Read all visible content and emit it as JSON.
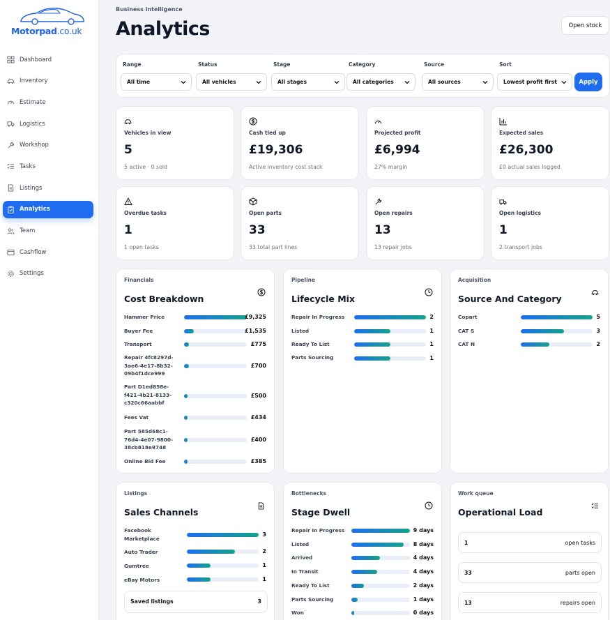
{
  "brand": {
    "name": "Motorpad",
    "suffix": ".co.uk"
  },
  "nav": [
    {
      "label": "Dashboard",
      "icon": "dashboard-icon"
    },
    {
      "label": "Inventory",
      "icon": "car-icon"
    },
    {
      "label": "Estimate",
      "icon": "gauge-icon"
    },
    {
      "label": "Logistics",
      "icon": "truck-icon"
    },
    {
      "label": "Workshop",
      "icon": "wrench-icon"
    },
    {
      "label": "Tasks",
      "icon": "checklist-icon"
    },
    {
      "label": "Listings",
      "icon": "document-icon"
    },
    {
      "label": "Analytics",
      "icon": "clipboard-icon",
      "active": true
    },
    {
      "label": "Team",
      "icon": "users-icon"
    },
    {
      "label": "Cashflow",
      "icon": "wallet-icon"
    },
    {
      "label": "Settings",
      "icon": "gear-icon"
    }
  ],
  "header": {
    "eyebrow": "Business intelligence",
    "title": "Analytics",
    "open_stock": "Open stock"
  },
  "filters": [
    {
      "label": "Range",
      "value": "All time"
    },
    {
      "label": "Status",
      "value": "All vehicles"
    },
    {
      "label": "Stage",
      "value": "All stages"
    },
    {
      "label": "Category",
      "value": "All categories"
    },
    {
      "label": "Source",
      "value": "All sources"
    },
    {
      "label": "Sort",
      "value": "Lowest profit first"
    }
  ],
  "apply_label": "Apply",
  "kpis": [
    {
      "label": "Vehicles in view",
      "value": "5",
      "sub": "5 active · 0 sold",
      "icon": "car-icon"
    },
    {
      "label": "Cash tied up",
      "value": "£19,306",
      "sub": "Active inventory cost stack",
      "icon": "dollar-icon"
    },
    {
      "label": "Projected profit",
      "value": "£6,994",
      "sub": "27% margin",
      "icon": "gauge-icon"
    },
    {
      "label": "Expected sales",
      "value": "£26,300",
      "sub": "£0 actual sales logged",
      "icon": "bar-chart-icon"
    },
    {
      "label": "Overdue tasks",
      "value": "1",
      "sub": "1 open tasks",
      "icon": "warning-icon"
    },
    {
      "label": "Open parts",
      "value": "33",
      "sub": "33 total part lines",
      "icon": "package-icon"
    },
    {
      "label": "Open repairs",
      "value": "13",
      "sub": "13 repair jobs",
      "icon": "wrench-icon"
    },
    {
      "label": "Open logistics",
      "value": "1",
      "sub": "2 transport jobs",
      "icon": "truck-icon"
    }
  ],
  "cost_breakdown": {
    "eyebrow": "Financials",
    "title": "Cost Breakdown",
    "icon": "dollar-icon",
    "rows": [
      {
        "label": "Hammer Price",
        "value": "£9,325",
        "fraction": 1.0
      },
      {
        "label": "Buyer Fee",
        "value": "£1,535",
        "fraction": 0.16
      },
      {
        "label": "Transport",
        "value": "£775",
        "fraction": 0.08
      },
      {
        "label": "Repair 4fc8297d-3ae6-4e17-8b32-09b4f1dce999",
        "value": "£700",
        "fraction": 0.075
      },
      {
        "label": "Part D1ed858e-f421-4b21-8133-c320c66aabbf",
        "value": "£500",
        "fraction": 0.054
      },
      {
        "label": "Fees Vat",
        "value": "£434",
        "fraction": 0.047
      },
      {
        "label": "Part 585d68c1-76d4-4e07-9800-38cb818e9748",
        "value": "£400",
        "fraction": 0.043
      },
      {
        "label": "Online Bid Fee",
        "value": "£385",
        "fraction": 0.041
      }
    ]
  },
  "lifecycle": {
    "eyebrow": "Pipeline",
    "title": "Lifecycle Mix",
    "icon": "clock-icon",
    "rows": [
      {
        "label": "Repair In Progress",
        "value": "2",
        "fraction": 1.0
      },
      {
        "label": "Listed",
        "value": "1",
        "fraction": 0.5
      },
      {
        "label": "Ready To List",
        "value": "1",
        "fraction": 0.5
      },
      {
        "label": "Parts Sourcing",
        "value": "1",
        "fraction": 0.5
      }
    ]
  },
  "source": {
    "eyebrow": "Acquisition",
    "title": "Source And Category",
    "icon": "car-icon",
    "rows": [
      {
        "label": "Copart",
        "value": "5",
        "fraction": 1.0
      },
      {
        "label": "CAT S",
        "value": "3",
        "fraction": 0.6
      },
      {
        "label": "CAT N",
        "value": "2",
        "fraction": 0.4
      }
    ]
  },
  "channels": {
    "eyebrow": "Listings",
    "title": "Sales Channels",
    "icon": "document-icon",
    "rows": [
      {
        "label": "Facebook Marketplace",
        "value": "3",
        "fraction": 1.0
      },
      {
        "label": "Auto Trader",
        "value": "2",
        "fraction": 0.67
      },
      {
        "label": "Gumtree",
        "value": "1",
        "fraction": 0.33
      },
      {
        "label": "eBay Motors",
        "value": "1",
        "fraction": 0.33
      }
    ],
    "saved_label": "Saved listings",
    "saved_value": "3"
  },
  "dwell": {
    "eyebrow": "Bottlenecks",
    "title": "Stage Dwell",
    "icon": "clock-icon",
    "rows": [
      {
        "label": "Repair In Progress",
        "value": "9 days",
        "fraction": 1.0
      },
      {
        "label": "Listed",
        "value": "8 days",
        "fraction": 0.89
      },
      {
        "label": "Arrived",
        "value": "4 days",
        "fraction": 0.49
      },
      {
        "label": "In Transit",
        "value": "4 days",
        "fraction": 0.44
      },
      {
        "label": "Ready To List",
        "value": "2 days",
        "fraction": 0.22
      },
      {
        "label": "Parts Sourcing",
        "value": "1 days",
        "fraction": 0.11
      },
      {
        "label": "Won",
        "value": "0 days",
        "fraction": 0.05
      }
    ]
  },
  "workqueue": {
    "eyebrow": "Work queue",
    "title": "Operational Load",
    "icon": "checklist-icon",
    "items": [
      {
        "value": "1",
        "label": "open tasks"
      },
      {
        "value": "33",
        "label": "parts open"
      },
      {
        "value": "13",
        "label": "repairs open"
      }
    ]
  }
}
